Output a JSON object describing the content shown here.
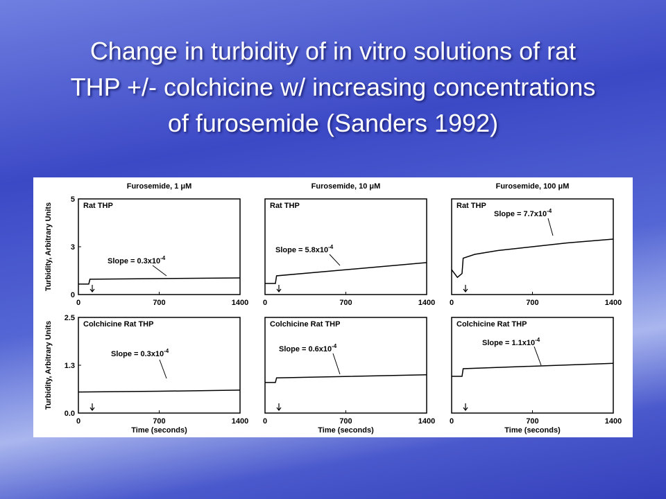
{
  "slide_title": [
    "Change in turbidity of in vitro solutions of rat",
    "THP +/- colchicine w/ increasing concentrations",
    "of furosemide (Sanders 1992)"
  ],
  "chart_data": [
    {
      "type": "line",
      "title": "Furosemide, 1 μM",
      "label": "Rat THP",
      "annotation": "Slope = 0.3x10",
      "annotation_exp": "-4",
      "ylabel": "Turbidity, Arbitrary Units",
      "x": [
        0,
        90,
        100,
        1400
      ],
      "values": [
        0.55,
        0.55,
        0.8,
        0.87
      ],
      "color": "#000000",
      "xlim": [
        0,
        1400
      ],
      "xticks": [
        0,
        700,
        1400
      ],
      "ylim": [
        0,
        5
      ],
      "yticks": [
        0,
        {
          "value": 2.5,
          "label": "3"
        },
        5
      ]
    },
    {
      "type": "line",
      "title": "Furosemide, 10 μM",
      "label": "Rat THP",
      "annotation": "Slope = 5.8x10",
      "annotation_exp": "-4",
      "x": [
        0,
        90,
        100,
        1400
      ],
      "values": [
        0.58,
        0.58,
        0.98,
        1.67
      ],
      "color": "#000000",
      "xlim": [
        0,
        1400
      ],
      "xticks": [
        0,
        700,
        1400
      ],
      "ylim": [
        0,
        5
      ]
    },
    {
      "type": "line",
      "title": "Furosemide, 100 μM",
      "label": "Rat THP",
      "annotation": "Slope = 7.7x10",
      "annotation_exp": "-4",
      "x": [
        0,
        50,
        90,
        100,
        200,
        400,
        700,
        1000,
        1400
      ],
      "values": [
        1.3,
        0.9,
        1.1,
        1.9,
        2.1,
        2.3,
        2.5,
        2.7,
        2.9
      ],
      "color": "#000000",
      "xlim": [
        0,
        1400
      ],
      "xticks": [
        0,
        700,
        1400
      ],
      "ylim": [
        0,
        5
      ]
    },
    {
      "type": "line",
      "label": "Colchicine Rat THP",
      "annotation": "Slope = 0.3x10",
      "annotation_exp": "-4",
      "ylabel": "Turbidity, Arbitrary Units",
      "xlabel": "Time (seconds)",
      "x": [
        0,
        700,
        1400
      ],
      "values": [
        0.55,
        0.57,
        0.6
      ],
      "color": "#000000",
      "xlim": [
        0,
        1400
      ],
      "xticks": [
        0,
        700,
        1400
      ],
      "ylim": [
        0,
        2.5
      ],
      "yticks": [
        {
          "value": 0,
          "label": "0.0"
        },
        {
          "value": 1.25,
          "label": "1.3"
        },
        2.5
      ]
    },
    {
      "type": "line",
      "label": "Colchicine Rat THP",
      "annotation": "Slope = 0.6x10",
      "annotation_exp": "-4",
      "xlabel": "Time (seconds)",
      "x": [
        0,
        90,
        100,
        1400
      ],
      "values": [
        0.8,
        0.8,
        0.92,
        1.0
      ],
      "color": "#000000",
      "xlim": [
        0,
        1400
      ],
      "xticks": [
        0,
        700,
        1400
      ],
      "ylim": [
        0,
        2.5
      ]
    },
    {
      "type": "line",
      "label": "Colchicine Rat THP",
      "annotation": "Slope = 1.1x10",
      "annotation_exp": "-4",
      "xlabel": "Time (seconds)",
      "x": [
        0,
        90,
        100,
        1400
      ],
      "values": [
        0.96,
        0.96,
        1.16,
        1.3
      ],
      "color": "#000000",
      "xlim": [
        0,
        1400
      ],
      "xticks": [
        0,
        700,
        1400
      ],
      "ylim": [
        0,
        2.5
      ]
    }
  ]
}
